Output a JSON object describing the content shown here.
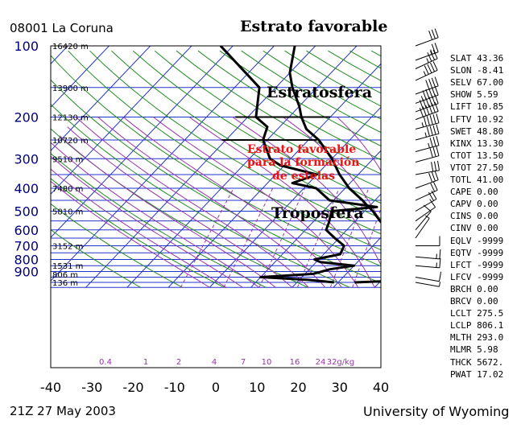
{
  "header": {
    "station": "08001  La Coruna",
    "timestamp": "21Z 27 May 2003",
    "source": "University of Wyoming"
  },
  "annotations": {
    "top_title": "Estrato favorable",
    "stratosphere": "Estratosfera",
    "favorable_layer": [
      "Estrato favorable",
      "para la formación",
      "de estelas"
    ],
    "troposphere": "Troposfera"
  },
  "indices": [
    {
      "name": "SLAT",
      "value": "43.36"
    },
    {
      "name": "SLON",
      "value": "-8.41"
    },
    {
      "name": "SELV",
      "value": "67.00"
    },
    {
      "name": "SHOW",
      "value": "5.59"
    },
    {
      "name": "LIFT",
      "value": "10.85"
    },
    {
      "name": "LFTV",
      "value": "10.92"
    },
    {
      "name": "SWET",
      "value": "48.80"
    },
    {
      "name": "KINX",
      "value": "13.30"
    },
    {
      "name": "CTOT",
      "value": "13.50"
    },
    {
      "name": "VTOT",
      "value": "27.50"
    },
    {
      "name": "TOTL",
      "value": "41.00"
    },
    {
      "name": "CAPE",
      "value": "0.00"
    },
    {
      "name": "CAPV",
      "value": "0.00"
    },
    {
      "name": "CINS",
      "value": "0.00"
    },
    {
      "name": "CINV",
      "value": "0.00"
    },
    {
      "name": "EQLV",
      "value": "-9999"
    },
    {
      "name": "EQTV",
      "value": "-9999"
    },
    {
      "name": "LFCT",
      "value": "-9999"
    },
    {
      "name": "LFCV",
      "value": "-9999"
    },
    {
      "name": "BRCH",
      "value": "0.00"
    },
    {
      "name": "BRCV",
      "value": "0.00"
    },
    {
      "name": "LCLT",
      "value": "275.5"
    },
    {
      "name": "LCLP",
      "value": "806.1"
    },
    {
      "name": "MLTH",
      "value": "293.0"
    },
    {
      "name": "MLMR",
      "value": "5.98"
    },
    {
      "name": "THCK",
      "value": "5672."
    },
    {
      "name": "PWAT",
      "value": "17.02"
    }
  ],
  "colors": {
    "isobar": "#2233cc",
    "isotherm": "#2233cc",
    "dry_adiabat": "#228b22",
    "mixing_ratio": "#9933aa",
    "moist_adiabat": "#9933aa",
    "sounding": "#000000",
    "accent_text": "#ee1111",
    "axis_label": "#000080"
  },
  "chart_data": {
    "type": "line",
    "diagram": "Skew-T log-P",
    "xlim": [
      -40,
      40
    ],
    "x_ticks": [
      -40,
      -30,
      -20,
      -10,
      0,
      10,
      20,
      30,
      40
    ],
    "pressure_ticks": [
      100,
      200,
      300,
      400,
      500,
      600,
      700,
      800,
      900
    ],
    "pressure_range": [
      100,
      1010
    ],
    "height_labels": [
      {
        "p": 100,
        "label": "16420 m"
      },
      {
        "p": 150,
        "label": "13900 m"
      },
      {
        "p": 200,
        "label": "12130 m"
      },
      {
        "p": 250,
        "label": "10720 m"
      },
      {
        "p": 300,
        "label": "9510 m"
      },
      {
        "p": 400,
        "label": "7480 m"
      },
      {
        "p": 500,
        "label": "5810 m"
      },
      {
        "p": 700,
        "label": "3152 m"
      },
      {
        "p": 850,
        "label": "1531 m"
      },
      {
        "p": 925,
        "label": "806 m"
      },
      {
        "p": 1000,
        "label": "136 m"
      }
    ],
    "mixing_ratio_lines": [
      0.4,
      1,
      2,
      4,
      7,
      10,
      16,
      24,
      32
    ],
    "mixing_ratio_unit": "g/kg",
    "temperature": [
      {
        "p": 1000,
        "t": 14
      },
      {
        "p": 990,
        "t": 20
      },
      {
        "p": 940,
        "t": 24
      },
      {
        "p": 925,
        "t": 23
      },
      {
        "p": 900,
        "t": 21.5
      },
      {
        "p": 850,
        "t": 22
      },
      {
        "p": 820,
        "t": 22
      },
      {
        "p": 800,
        "t": 19
      },
      {
        "p": 780,
        "t": 21
      },
      {
        "p": 700,
        "t": 18
      },
      {
        "p": 650,
        "t": 16
      },
      {
        "p": 600,
        "t": 10
      },
      {
        "p": 550,
        "t": 6
      },
      {
        "p": 500,
        "t": 2
      },
      {
        "p": 470,
        "t": -1
      },
      {
        "p": 450,
        "t": -3
      },
      {
        "p": 400,
        "t": -9
      },
      {
        "p": 350,
        "t": -14.5
      },
      {
        "p": 300,
        "t": -20
      },
      {
        "p": 250,
        "t": -27.5
      },
      {
        "p": 225,
        "t": -33
      },
      {
        "p": 200,
        "t": -37
      },
      {
        "p": 180,
        "t": -40
      },
      {
        "p": 150,
        "t": -46
      },
      {
        "p": 130,
        "t": -50
      },
      {
        "p": 100,
        "t": -55
      }
    ],
    "dewpoint": [
      {
        "p": 1000,
        "t": 9
      },
      {
        "p": 975,
        "t": 2
      },
      {
        "p": 950,
        "t": -10
      },
      {
        "p": 920,
        "t": 2
      },
      {
        "p": 880,
        "t": 5
      },
      {
        "p": 850,
        "t": 10
      },
      {
        "p": 820,
        "t": 1
      },
      {
        "p": 800,
        "t": -1
      },
      {
        "p": 760,
        "t": 4
      },
      {
        "p": 700,
        "t": 3
      },
      {
        "p": 650,
        "t": -1
      },
      {
        "p": 600,
        "t": -5
      },
      {
        "p": 560,
        "t": -6
      },
      {
        "p": 500,
        "t": -8
      },
      {
        "p": 480,
        "t": 2
      },
      {
        "p": 450,
        "t": -11
      },
      {
        "p": 400,
        "t": -17
      },
      {
        "p": 380,
        "t": -24
      },
      {
        "p": 350,
        "t": -20
      },
      {
        "p": 320,
        "t": -31
      },
      {
        "p": 300,
        "t": -35
      },
      {
        "p": 250,
        "t": -41
      },
      {
        "p": 220,
        "t": -43
      },
      {
        "p": 200,
        "t": -48
      },
      {
        "p": 150,
        "t": -54
      },
      {
        "p": 100,
        "t": -73
      }
    ],
    "trop_markers": [
      {
        "p": 200,
        "t_left": -53,
        "t_right": -30
      },
      {
        "p": 250,
        "t_left": -51,
        "t_right": -28
      }
    ],
    "wind_barbs": [
      {
        "p": 100,
        "dir": 250,
        "spd": 30
      },
      {
        "p": 115,
        "dir": 250,
        "spd": 25
      },
      {
        "p": 125,
        "dir": 245,
        "spd": 35
      },
      {
        "p": 140,
        "dir": 245,
        "spd": 45
      },
      {
        "p": 160,
        "dir": 250,
        "spd": 40
      },
      {
        "p": 175,
        "dir": 250,
        "spd": 55
      },
      {
        "p": 190,
        "dir": 250,
        "spd": 60
      },
      {
        "p": 205,
        "dir": 250,
        "spd": 60
      },
      {
        "p": 225,
        "dir": 255,
        "spd": 55
      },
      {
        "p": 250,
        "dir": 255,
        "spd": 45
      },
      {
        "p": 280,
        "dir": 255,
        "spd": 35
      },
      {
        "p": 310,
        "dir": 255,
        "spd": 30
      },
      {
        "p": 350,
        "dir": 260,
        "spd": 30
      },
      {
        "p": 400,
        "dir": 250,
        "spd": 30
      },
      {
        "p": 450,
        "dir": 245,
        "spd": 20
      },
      {
        "p": 500,
        "dir": 240,
        "spd": 20
      },
      {
        "p": 550,
        "dir": 235,
        "spd": 10
      },
      {
        "p": 600,
        "dir": 220,
        "spd": 10
      },
      {
        "p": 650,
        "dir": 215,
        "spd": 5
      },
      {
        "p": 700,
        "dir": 270,
        "spd": 10
      },
      {
        "p": 780,
        "dir": 275,
        "spd": 15
      },
      {
        "p": 850,
        "dir": 275,
        "spd": 15
      },
      {
        "p": 950,
        "dir": 280,
        "spd": 10
      },
      {
        "p": 1000,
        "dir": 280,
        "spd": 5
      }
    ]
  }
}
